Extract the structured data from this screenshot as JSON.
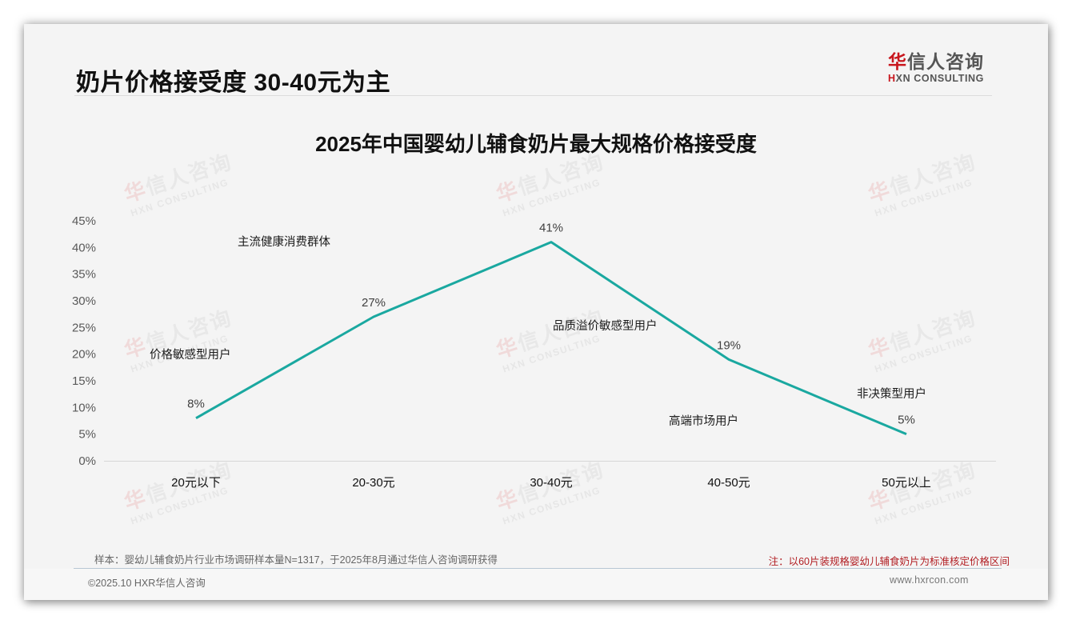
{
  "page": {
    "title": "奶片价格接受度 30-40元为主"
  },
  "logo": {
    "cn_first": "华",
    "cn_rest": "信人咨询",
    "en_first": "H",
    "en_rest": "XN CONSULTING"
  },
  "watermark": {
    "cn_first": "华",
    "cn_rest": "信人咨询",
    "en": "HXN CONSULTING"
  },
  "chart_data": {
    "type": "line",
    "title": "2025年中国婴幼儿辅食奶片最大规格价格接受度",
    "xlabel": "",
    "ylabel": "",
    "categories": [
      "20元以下",
      "20-30元",
      "30-40元",
      "40-50元",
      "50元以上"
    ],
    "series": [
      {
        "name": "价格接受度",
        "values": [
          8,
          27,
          41,
          19,
          5
        ],
        "color": "#1aa8a0"
      }
    ],
    "data_labels": [
      "8%",
      "27%",
      "41%",
      "19%",
      "5%"
    ],
    "yticks": [
      "0%",
      "5%",
      "10%",
      "15%",
      "20%",
      "25%",
      "30%",
      "35%",
      "40%",
      "45%"
    ],
    "ylim": [
      0,
      45
    ],
    "grid": false,
    "legend": "none",
    "annotations": [
      {
        "text": "价格敏感型用户",
        "category": "20元以下"
      },
      {
        "text": "主流健康消费群体",
        "category": "20-30元"
      },
      {
        "text": "品质溢价敏感型用户",
        "category": "30-40元"
      },
      {
        "text": "高端市场用户",
        "category": "40-50元"
      },
      {
        "text": "非决策型用户",
        "category": "50元以上"
      }
    ]
  },
  "notes": {
    "sample": "样本：婴幼儿辅食奶片行业市场调研样本量N=1317，于2025年8月通过华信人咨询调研获得",
    "remark": "注：以60片装规格婴幼儿辅食奶片为标准核定价格区间"
  },
  "footer": {
    "copyright": "©2025.10 HXR华信人咨询",
    "website": "www.hxrcon.com"
  }
}
